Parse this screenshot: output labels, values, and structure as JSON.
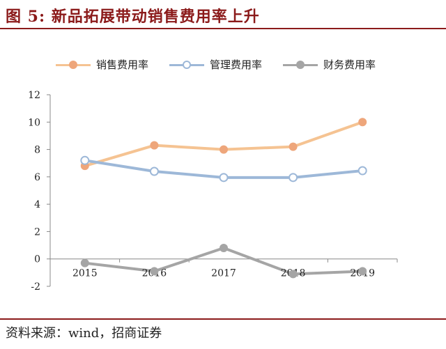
{
  "header": {
    "title": "图 5:  新品拓展带动销售费用率上升"
  },
  "footer": {
    "source": "资料来源：wind，招商证券"
  },
  "chart_data": {
    "type": "line",
    "categories": [
      "2015",
      "2016",
      "2017",
      "2018",
      "2019"
    ],
    "ylim": [
      -2,
      12
    ],
    "yticks": [
      -2,
      0,
      2,
      4,
      6,
      8,
      10,
      12
    ],
    "grid": false,
    "legend_position": "top",
    "series": [
      {
        "name": "销售费用率",
        "values": [
          6.8,
          8.3,
          8.0,
          8.2,
          10.0
        ],
        "color": "#F5C392",
        "marker": "#EEA67B",
        "marker_style": "filled"
      },
      {
        "name": "管理费用率",
        "values": [
          7.2,
          6.4,
          5.95,
          5.95,
          6.45
        ],
        "color": "#9DB8D8",
        "marker": "#9DB8D8",
        "marker_style": "hollow"
      },
      {
        "name": "财务费用率",
        "values": [
          -0.3,
          -0.9,
          0.8,
          -1.1,
          -0.9
        ],
        "color": "#A5A5A5",
        "marker": "#A5A5A5",
        "marker_style": "filled"
      }
    ]
  }
}
